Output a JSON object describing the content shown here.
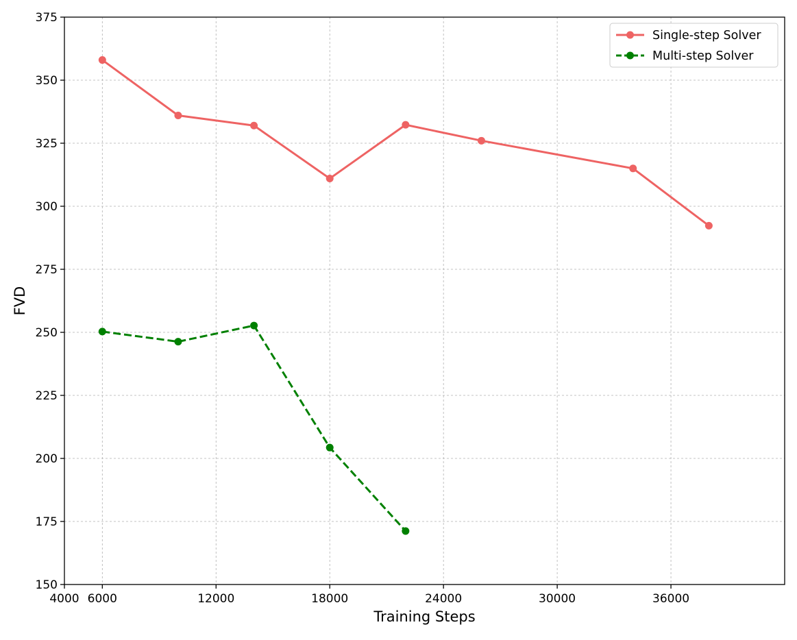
{
  "chart_data": {
    "type": "line",
    "xlabel": "Training Steps",
    "ylabel": "FVD",
    "xlim": [
      4000,
      42000
    ],
    "ylim": [
      150,
      375
    ],
    "xticks": [
      4000,
      6000,
      12000,
      18000,
      24000,
      30000,
      36000
    ],
    "xtick_labels": [
      "4000",
      "6000",
      "12000",
      "18000",
      "24000",
      "30000",
      "36000"
    ],
    "yticks": [
      150,
      175,
      200,
      225,
      250,
      275,
      300,
      325,
      350,
      375
    ],
    "ytick_labels": [
      "150",
      "175",
      "200",
      "225",
      "250",
      "275",
      "300",
      "325",
      "350",
      "375"
    ],
    "grid": true,
    "legend_position": "top-right",
    "series": [
      {
        "name": "Single-step Solver",
        "color": "#ee6363",
        "line_style": "solid",
        "marker": "circle",
        "x": [
          6000,
          10000,
          14000,
          18000,
          22000,
          26000,
          34000,
          38000
        ],
        "y": [
          358,
          336,
          332,
          311,
          332.3,
          326,
          315,
          292.3
        ]
      },
      {
        "name": "Multi-step Solver",
        "color": "#008000",
        "line_style": "dashed",
        "marker": "circle",
        "x": [
          6000,
          10000,
          14000,
          18000,
          22000
        ],
        "y": [
          250.3,
          246.3,
          252.7,
          204.3,
          171.2
        ]
      }
    ]
  }
}
